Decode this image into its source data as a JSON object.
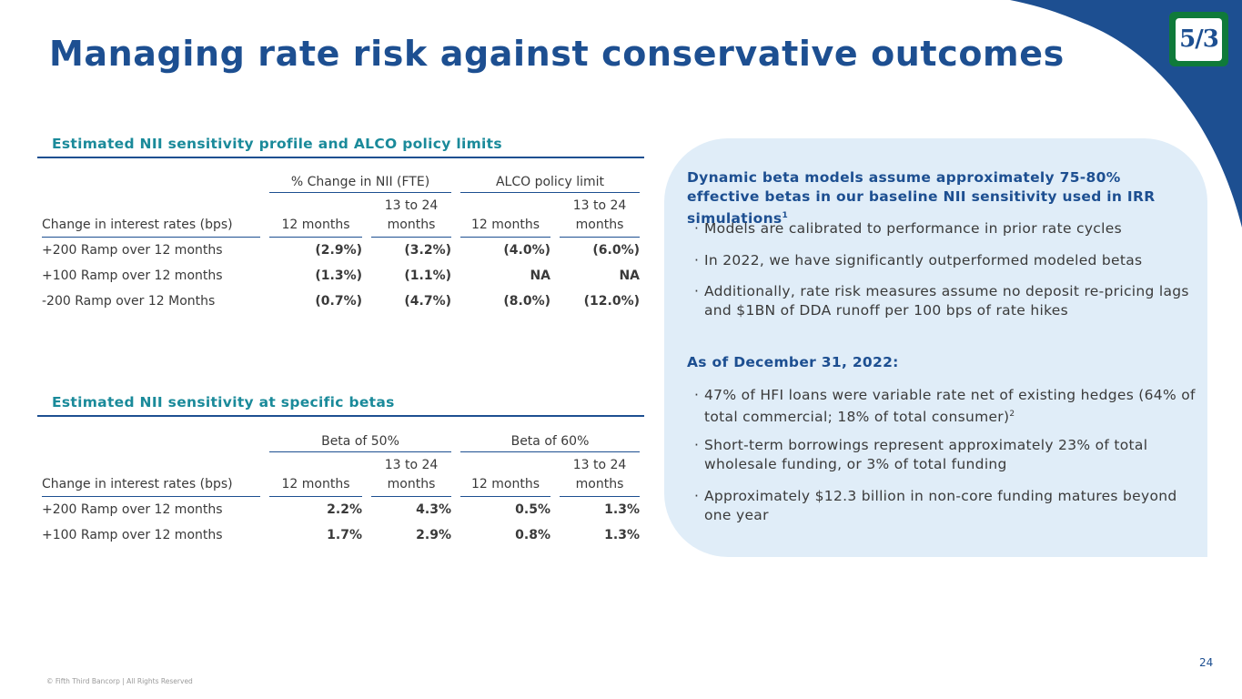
{
  "slide": {
    "title": "Managing rate risk against conservative outcomes",
    "page_number": "24",
    "footer": "© Fifth Third Bancorp | All Rights Reserved",
    "logo_text": "5/3"
  },
  "table1": {
    "title": "Estimated NII sensitivity profile and ALCO policy limits",
    "group1": "% Change in NII (FTE)",
    "group2": "ALCO policy limit",
    "row_header": "Change in interest rates (bps)",
    "col_12": "12 months",
    "col_1324_a": "13 to 24",
    "col_1324_b": "months",
    "rows": [
      {
        "label": "+200 Ramp over 12 months",
        "v1": "(2.9%)",
        "v2": "(3.2%)",
        "v3": "(4.0%)",
        "v4": "(6.0%)"
      },
      {
        "label": "+100 Ramp over 12 months",
        "v1": "(1.3%)",
        "v2": "(1.1%)",
        "v3": "NA",
        "v4": "NA"
      },
      {
        "label": "-200 Ramp over 12 Months",
        "v1": "(0.7%)",
        "v2": "(4.7%)",
        "v3": "(8.0%)",
        "v4": "(12.0%)"
      }
    ]
  },
  "table2": {
    "title": "Estimated NII sensitivity at specific betas",
    "group1": "Beta of 50%",
    "group2": "Beta of 60%",
    "row_header": "Change in interest rates (bps)",
    "col_12": "12 months",
    "col_1324_a": "13 to 24",
    "col_1324_b": "months",
    "rows": [
      {
        "label": "+200 Ramp over 12 months",
        "v1": "2.2%",
        "v2": "4.3%",
        "v3": "0.5%",
        "v4": "1.3%"
      },
      {
        "label": "+100 Ramp over 12 months",
        "v1": "1.7%",
        "v2": "2.9%",
        "v3": "0.8%",
        "v4": "1.3%"
      }
    ]
  },
  "panel": {
    "lead": "Dynamic beta models assume approximately 75-80% effective betas in our baseline NII sensitivity used in IRR simulations",
    "lead_sup": "1",
    "bullets1": [
      "Models are calibrated to performance in prior rate cycles",
      "In 2022, we have significantly outperformed modeled betas",
      "Additionally, rate risk measures assume no deposit re-pricing lags and $1BN of DDA runoff per 100 bps of rate hikes"
    ],
    "asof": "As of December 31, 2022:",
    "bullets2": [
      "47% of HFI loans were variable rate net of existing hedges (64% of total commercial; 18% of total consumer)",
      "Short-term borrowings represent approximately 23% of total wholesale funding, or 3% of total funding",
      "Approximately $12.3 billion in non-core funding matures beyond one year"
    ],
    "bullet2_0_sup": "2",
    "bullet_dot": "·"
  },
  "colors": {
    "brand_blue": "#1d4f91",
    "teal": "#1a8a9a",
    "panel_bg": "#e0edf8",
    "logo_green": "#0f7a3a"
  }
}
